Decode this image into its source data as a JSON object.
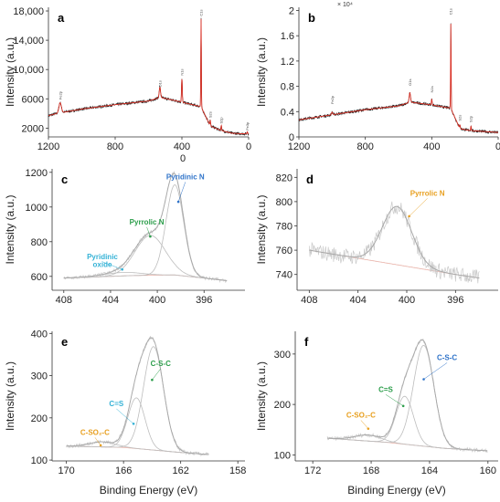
{
  "labels": {
    "binding_energy": "Binding Energy (eV)",
    "intensity": "Intensity (a.u.)"
  },
  "chart_data": [
    {
      "panel": "a",
      "type": "line",
      "xlim": [
        1200,
        0
      ],
      "ylim": [
        800,
        18500
      ],
      "xticks": [
        "1200",
        "800",
        "400",
        "0"
      ],
      "xtick_values": [
        1200,
        800,
        400,
        0
      ],
      "yticks": [
        "18,000",
        "14,000",
        "10,000",
        "6000",
        "2000"
      ],
      "ytick_values": [
        18000,
        14000,
        10000,
        6000,
        2000
      ],
      "extra_label": "0",
      "baseline": [
        [
          1200,
          3700
        ],
        [
          1150,
          4000
        ],
        [
          1000,
          4600
        ],
        [
          800,
          5200
        ],
        [
          600,
          5700
        ],
        [
          530,
          6200
        ],
        [
          410,
          5600
        ],
        [
          300,
          5000
        ],
        [
          287,
          5000
        ],
        [
          230,
          2300
        ],
        [
          168,
          1700
        ],
        [
          100,
          1300
        ],
        [
          0,
          1200
        ]
      ],
      "peaks": [
        [
          1130,
          1400,
          18
        ],
        [
          532,
          1400,
          10
        ],
        [
          400,
          3200,
          6
        ],
        [
          285,
          12000,
          4
        ],
        [
          230,
          800,
          5
        ],
        [
          164,
          700,
          5
        ],
        [
          8,
          300,
          6
        ]
      ],
      "peak_labels": [
        {
          "x": 1130,
          "y": 5900,
          "text": "Fe2p"
        },
        {
          "x": 532,
          "y": 7600,
          "text": "O1s"
        },
        {
          "x": 400,
          "y": 9200,
          "text": "N1s"
        },
        {
          "x": 285,
          "y": 17300,
          "text": "C1s"
        },
        {
          "x": 230,
          "y": 3400,
          "text": "S2s"
        },
        {
          "x": 164,
          "y": 2600,
          "text": "S2p"
        },
        {
          "x": 8,
          "y": 1700,
          "text": "Fe3p"
        }
      ]
    },
    {
      "panel": "b",
      "type": "line",
      "xlim": [
        1200,
        0
      ],
      "ylim": [
        0,
        20500
      ],
      "xticks": [
        "1200",
        "800",
        "400",
        "0"
      ],
      "xtick_values": [
        1200,
        800,
        400,
        0
      ],
      "yticks": [
        "2",
        "1.6",
        "1.2",
        "0.8",
        "0.4",
        "0"
      ],
      "ytick_values": [
        20000,
        16000,
        12000,
        8000,
        4000,
        0
      ],
      "multiplier": "× 10⁴",
      "baseline": [
        [
          1200,
          2700
        ],
        [
          1000,
          3500
        ],
        [
          800,
          4300
        ],
        [
          600,
          4900
        ],
        [
          530,
          5500
        ],
        [
          410,
          5100
        ],
        [
          300,
          4600
        ],
        [
          287,
          4600
        ],
        [
          230,
          1300
        ],
        [
          168,
          1000
        ],
        [
          0,
          700
        ]
      ],
      "peaks": [
        [
          1000,
          400,
          10
        ],
        [
          532,
          1500,
          10
        ],
        [
          400,
          900,
          6
        ],
        [
          285,
          13400,
          4
        ],
        [
          230,
          600,
          5
        ],
        [
          164,
          700,
          5
        ]
      ],
      "peak_labels": [
        {
          "x": 1000,
          "y": 5200,
          "text": "Fe2p"
        },
        {
          "x": 532,
          "y": 8100,
          "text": "O1s"
        },
        {
          "x": 400,
          "y": 7000,
          "text": "N1s"
        },
        {
          "x": 285,
          "y": 19300,
          "text": "C1s"
        },
        {
          "x": 230,
          "y": 2500,
          "text": "S2s"
        },
        {
          "x": 164,
          "y": 2300,
          "text": "S2p"
        }
      ]
    },
    {
      "panel": "c",
      "type": "line",
      "xlim": [
        409,
        392.5
      ],
      "ylim": [
        520,
        1220
      ],
      "xticks": [
        "408",
        "404",
        "400",
        "396"
      ],
      "xtick_values": [
        408,
        404,
        400,
        396
      ],
      "yticks": [
        "1200",
        "1000",
        "800",
        "600"
      ],
      "ytick_values": [
        1200,
        1000,
        800,
        600
      ],
      "background": [
        [
          408,
          590
        ],
        [
          402,
          605
        ],
        [
          398.5,
          608
        ],
        [
          396,
          590
        ],
        [
          394,
          575
        ]
      ],
      "components": [
        {
          "name": "Pyridinic oxide",
          "center": 403.0,
          "height": 20,
          "width": 1.6
        },
        {
          "name": "Pyrrolic N",
          "center": 400.6,
          "height": 230,
          "width": 1.3
        },
        {
          "name": "Pyridinic N",
          "center": 398.5,
          "height": 520,
          "width": 0.75
        }
      ],
      "annotations": [
        {
          "text": "Pyridinic N",
          "x": 397.6,
          "y": 1160,
          "color": "#2f73c9"
        },
        {
          "text": "Pyrrolic N",
          "x": 400.9,
          "y": 900,
          "color": "#2c9e4b"
        },
        {
          "text": "Pyridinic",
          "x": 404.7,
          "y": 700,
          "color": "#35b2d6"
        },
        {
          "text": "oxide",
          "x": 404.7,
          "y": 655,
          "color": "#35b2d6"
        }
      ],
      "markers": [
        {
          "x": 398.2,
          "y": 1030,
          "color": "#2f73c9"
        },
        {
          "x": 400.6,
          "y": 830,
          "color": "#2c9e4b"
        },
        {
          "x": 403.0,
          "y": 640,
          "color": "#35b2d6"
        }
      ]
    },
    {
      "panel": "d",
      "type": "line",
      "xlim": [
        409,
        392.5
      ],
      "ylim": [
        727,
        827
      ],
      "xticks": [
        "408",
        "404",
        "400",
        "396"
      ],
      "xtick_values": [
        408,
        404,
        400,
        396
      ],
      "yticks": [
        "820",
        "800",
        "780",
        "760",
        "740"
      ],
      "ytick_values": [
        820,
        800,
        780,
        760,
        740
      ],
      "background": [
        [
          408,
          760
        ],
        [
          402,
          750
        ],
        [
          396,
          740
        ],
        [
          394,
          737
        ]
      ],
      "components": [
        {
          "name": "Pyrrolic N",
          "center": 400.8,
          "height": 48,
          "width": 1.2
        }
      ],
      "annotations": [
        {
          "text": "Pyrrolic N",
          "x": 398.3,
          "y": 805,
          "color": "#e8a020"
        }
      ],
      "markers": [
        {
          "x": 399.8,
          "y": 788,
          "color": "#e8a020"
        }
      ]
    },
    {
      "panel": "e",
      "type": "line",
      "xlim": [
        171,
        157.5
      ],
      "ylim": [
        98,
        405
      ],
      "xticks": [
        "170",
        "166",
        "162",
        "158"
      ],
      "xtick_values": [
        170,
        166,
        162,
        158
      ],
      "yticks": [
        "400",
        "300",
        "200",
        "100"
      ],
      "ytick_values": [
        400,
        300,
        200,
        100
      ],
      "background": [
        [
          170,
          133
        ],
        [
          166,
          130
        ],
        [
          162,
          118
        ],
        [
          160,
          113
        ]
      ],
      "components": [
        {
          "name": "C-SO2-C",
          "center": 167.5,
          "height": 12,
          "width": 0.9
        },
        {
          "name": "C=S",
          "center": 165.1,
          "height": 120,
          "width": 0.6
        },
        {
          "name": "C-S-C",
          "center": 163.9,
          "height": 245,
          "width": 0.7
        }
      ],
      "annotations": [
        {
          "text": "C-S-C",
          "x": 163.4,
          "y": 323,
          "color": "#2c9e4b"
        },
        {
          "text": "C=S",
          "x": 166.5,
          "y": 228,
          "color": "#35b2d6"
        },
        {
          "text": "C-SO₂-C",
          "x": 168.0,
          "y": 160,
          "color": "#e8a020"
        }
      ],
      "markers": [
        {
          "x": 164.0,
          "y": 290,
          "color": "#2c9e4b"
        },
        {
          "x": 165.3,
          "y": 186,
          "color": "#35b2d6"
        },
        {
          "x": 167.6,
          "y": 135,
          "color": "#e8a020"
        }
      ]
    },
    {
      "panel": "f",
      "type": "line",
      "xlim": [
        173.2,
        159.3
      ],
      "ylim": [
        88,
        345
      ],
      "xticks": [
        "172",
        "168",
        "164",
        "160"
      ],
      "xtick_values": [
        172,
        168,
        164,
        160
      ],
      "yticks": [
        "300",
        "200",
        "100"
      ],
      "ytick_values": [
        300,
        200,
        100
      ],
      "background": [
        [
          171,
          133
        ],
        [
          167,
          125
        ],
        [
          163,
          113
        ],
        [
          160,
          108
        ]
      ],
      "components": [
        {
          "name": "C-SO2-C",
          "center": 168.2,
          "height": 12,
          "width": 0.9
        },
        {
          "name": "C=S",
          "center": 165.7,
          "height": 95,
          "width": 0.6
        },
        {
          "name": "C-S-C",
          "center": 164.4,
          "height": 200,
          "width": 0.7
        }
      ],
      "annotations": [
        {
          "text": "C-S-C",
          "x": 162.8,
          "y": 288,
          "color": "#2f73c9"
        },
        {
          "text": "C=S",
          "x": 167.0,
          "y": 225,
          "color": "#2c9e4b"
        },
        {
          "text": "C-SO₂-C",
          "x": 168.7,
          "y": 174,
          "color": "#e8a020"
        }
      ],
      "markers": [
        {
          "x": 164.4,
          "y": 250,
          "color": "#2f73c9"
        },
        {
          "x": 165.8,
          "y": 197,
          "color": "#2c9e4b"
        },
        {
          "x": 168.2,
          "y": 152,
          "color": "#e8a020"
        }
      ]
    }
  ],
  "colors": {
    "data_line": "#1a1a1a",
    "fit_line": "#d93025",
    "fit_component": "#bdbdbd",
    "spectrum_light": "#c9c9c9",
    "background_line": "#e8b0a6",
    "axis": "#333333"
  }
}
